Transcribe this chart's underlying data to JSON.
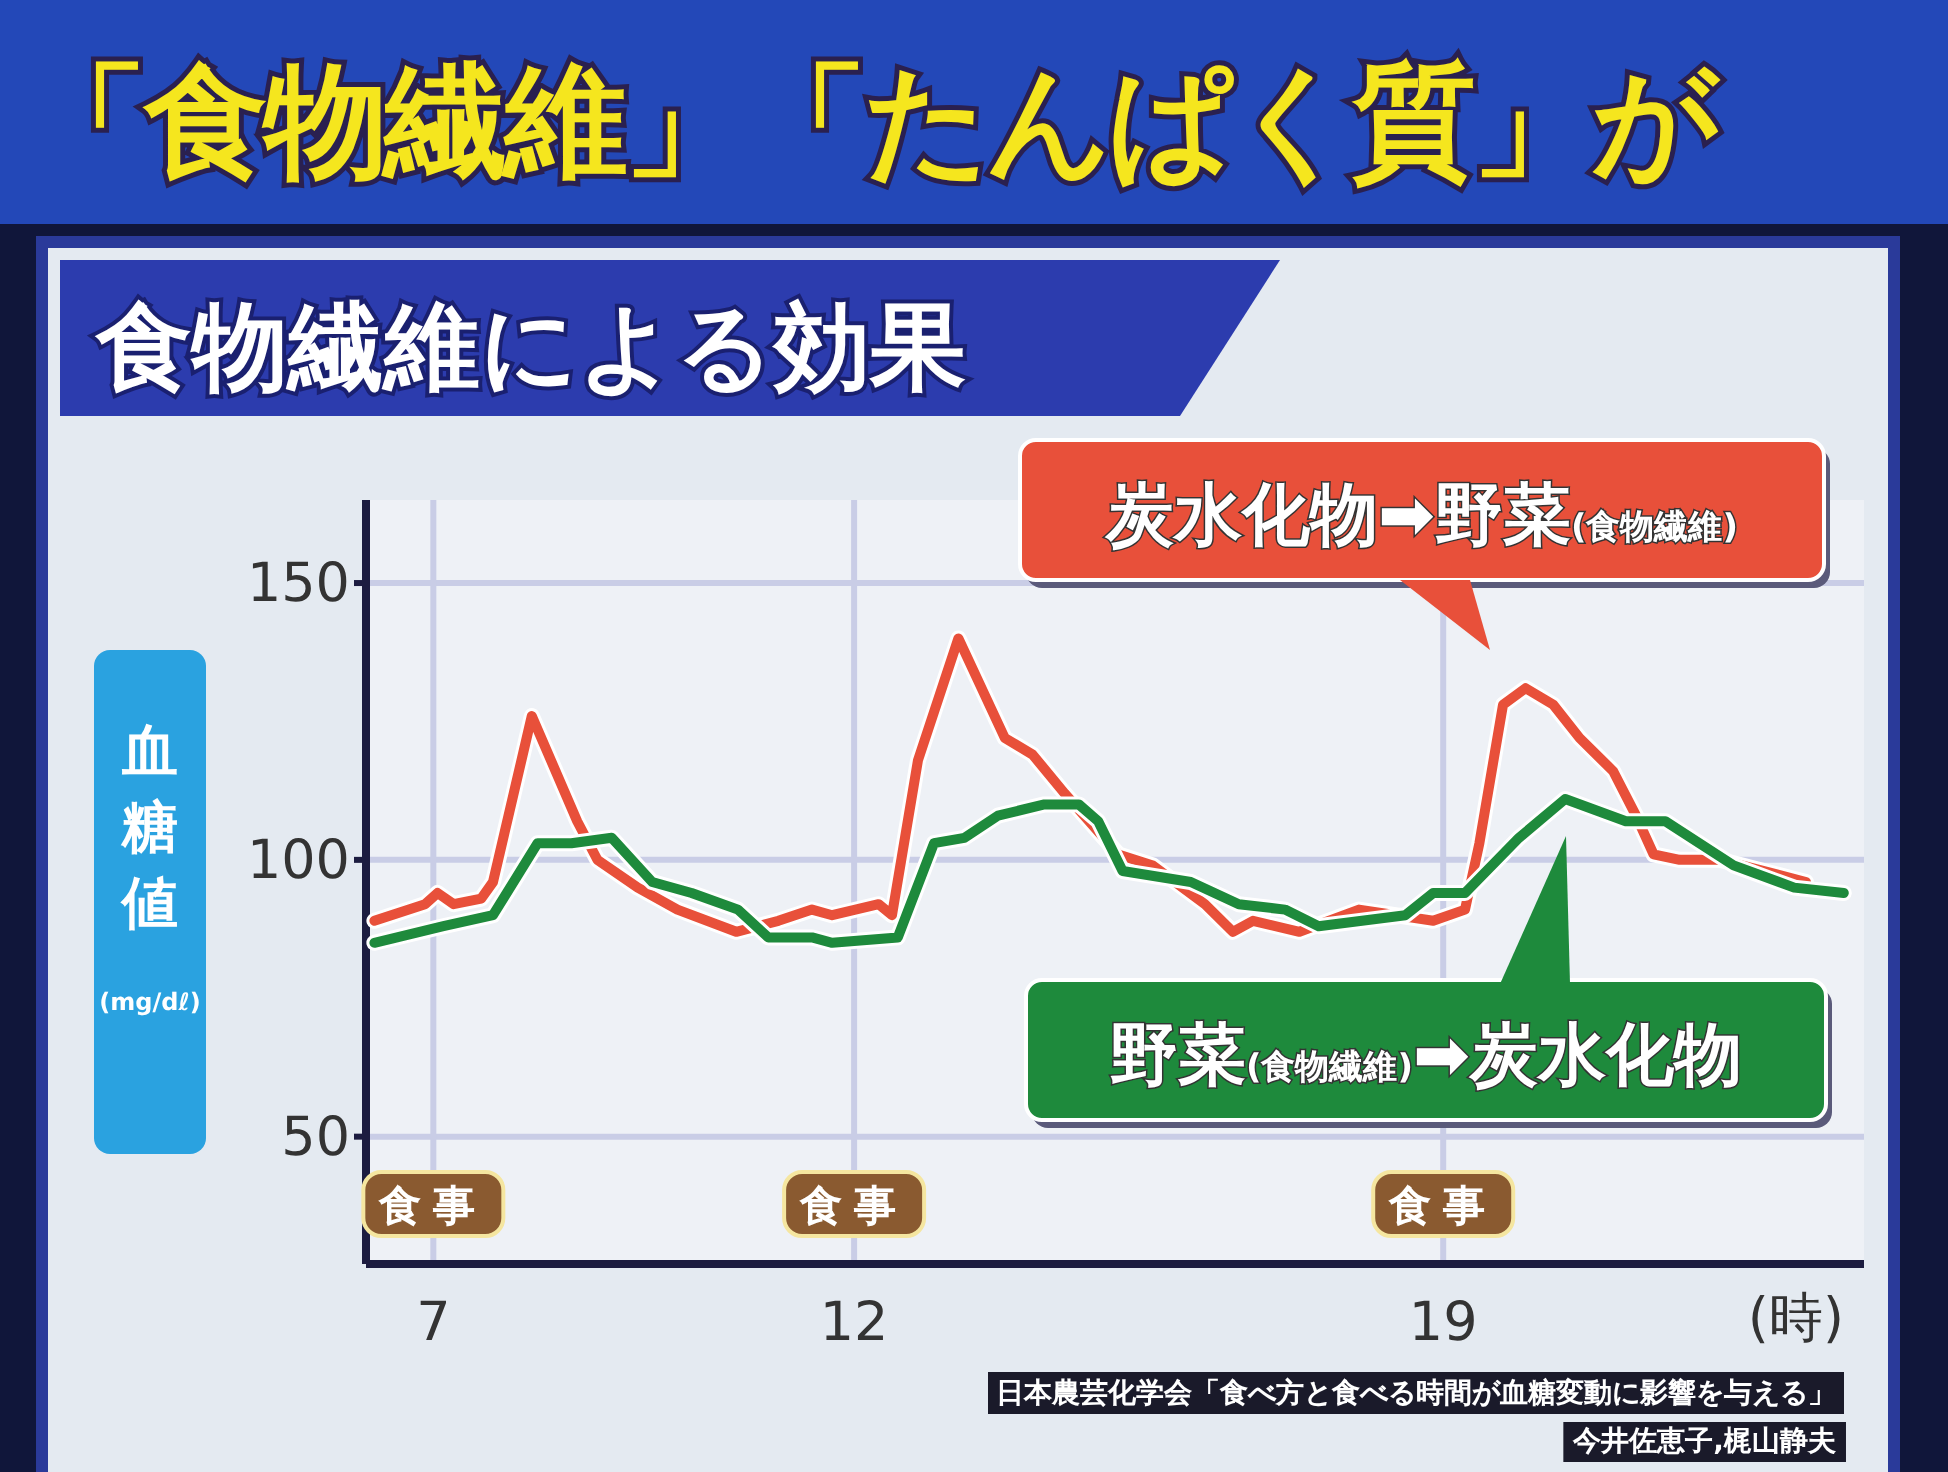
{
  "chart_data": {
    "type": "line",
    "title": "「食物繊維」「たんぱく質」が",
    "subtitle": "食物繊維による効果",
    "ylabel": "血糖値(mg/dℓ)",
    "xlabel": "(時)",
    "xlim": [
      6.2,
      24
    ],
    "ylim": [
      27,
      165
    ],
    "xticks": [
      7,
      12,
      19
    ],
    "yticks": [
      50,
      100,
      150
    ],
    "grid": true,
    "legend": "right",
    "marker": "none",
    "line_style": "solid",
    "series": [
      {
        "name": "炭水化物➡野菜(食物繊維)",
        "color": "#e8503a",
        "x": [
          6.3,
          6.9,
          7.05,
          7.24,
          7.57,
          7.71,
          8.17,
          8.71,
          8.95,
          9.43,
          9.9,
          10.6,
          11.1,
          11.5,
          11.74,
          12.29,
          12.45,
          12.76,
          13.24,
          13.79,
          14.12,
          14.5,
          15.14,
          15.55,
          16.17,
          16.5,
          16.74,
          17.29,
          18.0,
          18.88,
          19.26,
          19.43,
          19.71,
          19.98,
          20.31,
          20.62,
          21.02,
          21.29,
          21.5,
          21.81,
          22.29,
          23.31
        ],
        "values": [
          89,
          92,
          94,
          92,
          93,
          96,
          126,
          107,
          100,
          95,
          91,
          87,
          89,
          91,
          90,
          92,
          90,
          118,
          140,
          122,
          119,
          112,
          101,
          99,
          92,
          87,
          89,
          87,
          91,
          89,
          91,
          103,
          128,
          131,
          128,
          122,
          116,
          108,
          101,
          100,
          100,
          96
        ]
      },
      {
        "name": "野菜(食物繊維)➡炭水化物",
        "color": "#1e8a3c",
        "x": [
          6.3,
          7.12,
          7.71,
          8.24,
          8.64,
          9.12,
          9.6,
          10.07,
          10.62,
          10.98,
          11.5,
          11.74,
          12.52,
          12.95,
          13.31,
          13.71,
          14.26,
          14.67,
          14.9,
          15.19,
          16.0,
          16.57,
          17.12,
          17.52,
          18.55,
          18.88,
          19.26,
          19.9,
          20.45,
          21.17,
          21.64,
          22.45,
          23.17,
          23.76
        ],
        "values": [
          85,
          88,
          90,
          103,
          103,
          104,
          96,
          94,
          91,
          86,
          86,
          85,
          86,
          103,
          104,
          108,
          110,
          110,
          107,
          98,
          96,
          92,
          91,
          88,
          90,
          94,
          94,
          104,
          111,
          107,
          107,
          99,
          95,
          94
        ]
      }
    ],
    "annotations": [
      "食事",
      "食事",
      "食事",
      "日本農芸化学会「食べ方と食べる時間が血糖変動に影響を与える」",
      "今井佐恵子,梶山静夫"
    ]
  }
}
